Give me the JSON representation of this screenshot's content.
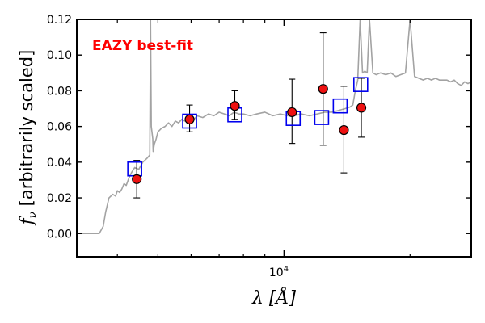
{
  "chart_data": {
    "type": "scatter",
    "xscale": "log",
    "xlim": [
      3200,
      28000
    ],
    "ylim": [
      -0.013,
      0.12
    ],
    "yticks": [
      "0.00",
      "0.02",
      "0.04",
      "0.06",
      "0.08",
      "0.10",
      "0.12"
    ],
    "yticks_values": [
      0.0,
      0.02,
      0.04,
      0.06,
      0.08,
      0.1,
      0.12
    ],
    "xtick_label": {
      "base": "10",
      "exp": "4"
    },
    "xlabel": "λ [Å]",
    "ylabel": {
      "symbol": "f",
      "sub": "ν",
      "text": " [arbitrarily scaled]"
    },
    "annotation": {
      "text": "EAZY best-fit",
      "color": "#ff0000"
    },
    "colors": {
      "model": "#a3a3a3",
      "observed_fill": "#ee1111",
      "template": "#0000ee",
      "errorbar": "#000000"
    },
    "series": [
      {
        "kind": "observed",
        "x": [
          4450,
          5950,
          7630,
          10450,
          12400,
          13900,
          15300
        ],
        "y": [
          0.0305,
          0.064,
          0.0715,
          0.068,
          0.081,
          0.058,
          0.0705
        ],
        "yerr_low": [
          0.0105,
          0.007,
          0.0075,
          0.0175,
          0.0315,
          0.024,
          0.0165
        ],
        "yerr_high": [
          0.0105,
          0.008,
          0.0085,
          0.0185,
          0.0315,
          0.0245,
          0.0165
        ]
      },
      {
        "kind": "template",
        "x": [
          4400,
          5950,
          7630,
          10520,
          12300,
          13620,
          15250
        ],
        "y": [
          0.0362,
          0.063,
          0.0665,
          0.0645,
          0.065,
          0.0715,
          0.0835
        ]
      }
    ],
    "model_line": {
      "x": [
        3200,
        3480,
        3620,
        3700,
        3750,
        3820,
        3900,
        3960,
        4000,
        4050,
        4100,
        4150,
        4200,
        4260,
        4320,
        4400,
        4500,
        4600,
        4700,
        4780,
        4800,
        4820,
        4860,
        4870,
        4900,
        4950,
        5000,
        5100,
        5200,
        5300,
        5400,
        5500,
        5600,
        5700,
        5800,
        5900,
        6000,
        6100,
        6200,
        6400,
        6600,
        6800,
        7000,
        7200,
        7400,
        7600,
        7800,
        8000,
        8300,
        8600,
        9000,
        9400,
        9800,
        10200,
        10600,
        11000,
        11500,
        12000,
        12500,
        13000,
        13500,
        14000,
        14400,
        14600,
        14800,
        15000,
        15200,
        15400,
        15600,
        15800,
        16000,
        16300,
        16600,
        17000,
        17500,
        18000,
        18500,
        19000,
        19500,
        20000,
        20500,
        21000,
        21500,
        22000,
        22500,
        23000,
        23500,
        24000,
        24500,
        25000,
        25500,
        26000,
        26500,
        27000,
        27500,
        28000
      ],
      "y": [
        0.0,
        0.0,
        0.0,
        0.004,
        0.012,
        0.02,
        0.022,
        0.021,
        0.024,
        0.023,
        0.025,
        0.028,
        0.027,
        0.031,
        0.034,
        0.037,
        0.036,
        0.04,
        0.042,
        0.044,
        0.12,
        0.06,
        0.053,
        0.046,
        0.05,
        0.053,
        0.057,
        0.059,
        0.06,
        0.062,
        0.06,
        0.063,
        0.062,
        0.064,
        0.063,
        0.064,
        0.065,
        0.064,
        0.066,
        0.065,
        0.067,
        0.066,
        0.068,
        0.067,
        0.066,
        0.068,
        0.067,
        0.067,
        0.066,
        0.067,
        0.068,
        0.066,
        0.067,
        0.066,
        0.066,
        0.067,
        0.066,
        0.067,
        0.068,
        0.068,
        0.069,
        0.07,
        0.071,
        0.072,
        0.08,
        0.086,
        0.12,
        0.09,
        0.091,
        0.09,
        0.12,
        0.09,
        0.089,
        0.09,
        0.089,
        0.09,
        0.088,
        0.089,
        0.09,
        0.12,
        0.088,
        0.087,
        0.086,
        0.087,
        0.086,
        0.087,
        0.086,
        0.086,
        0.086,
        0.085,
        0.086,
        0.084,
        0.083,
        0.085,
        0.084,
        0.085
      ]
    }
  }
}
